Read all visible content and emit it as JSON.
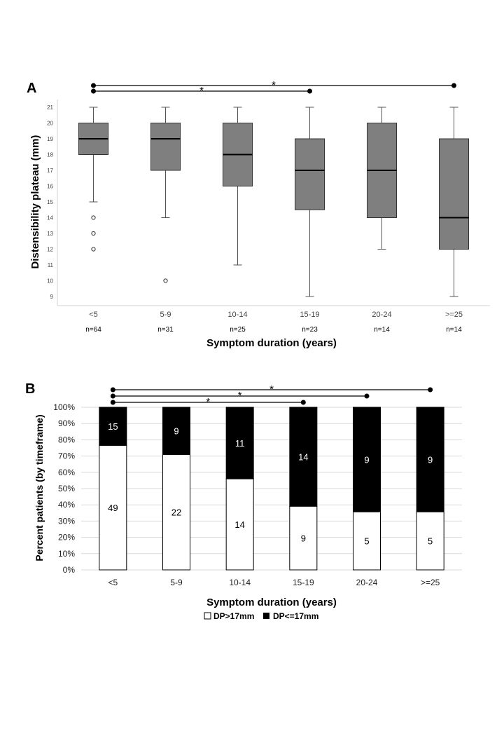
{
  "chart_data": [
    {
      "type": "box",
      "panel_label": "A",
      "categories": [
        "<5",
        "5-9",
        "10-14",
        "15-19",
        "20-24",
        ">=25"
      ],
      "counts": [
        "n=64",
        "n=31",
        "n=25",
        "n=23",
        "n=14",
        "n=14"
      ],
      "boxes": [
        {
          "min": 15,
          "q1": 18,
          "median": 19,
          "q3": 20,
          "max": 21,
          "outliers": [
            14,
            13,
            12
          ]
        },
        {
          "min": 14,
          "q1": 17,
          "median": 19,
          "q3": 20,
          "max": 21,
          "outliers": [
            10
          ]
        },
        {
          "min": 11,
          "q1": 16,
          "median": 18,
          "q3": 20,
          "max": 21,
          "outliers": []
        },
        {
          "min": 9,
          "q1": 14.5,
          "median": 17,
          "q3": 19,
          "max": 21,
          "outliers": []
        },
        {
          "min": 12,
          "q1": 14,
          "median": 17,
          "q3": 20,
          "max": 21,
          "outliers": []
        },
        {
          "min": 9,
          "q1": 12,
          "median": 14,
          "q3": 19,
          "max": 21,
          "outliers": []
        }
      ],
      "ylabel": "Distensibility plateau (mm)",
      "xlabel": "Symptom duration (years)",
      "ylim": [
        9,
        21
      ],
      "yticks": [
        9,
        10,
        11,
        12,
        13,
        14,
        15,
        16,
        17,
        18,
        19,
        20,
        21
      ],
      "box_color": "#7f7f7f",
      "significance": [
        {
          "from": "<5",
          "to": ">=25",
          "label": "*"
        },
        {
          "from": "<5",
          "to": "15-19",
          "label": "*"
        }
      ]
    },
    {
      "type": "stacked_bar",
      "panel_label": "B",
      "categories": [
        "<5",
        "5-9",
        "10-14",
        "15-19",
        "20-24",
        ">=25"
      ],
      "series": [
        {
          "name": "DP>17mm",
          "color": "#ffffff",
          "values": [
            49,
            22,
            14,
            9,
            5,
            5
          ]
        },
        {
          "name": "DP<=17mm",
          "color": "#000000",
          "values": [
            15,
            9,
            11,
            14,
            9,
            9
          ]
        }
      ],
      "ylabel": "Percent patients (by timeframe)",
      "xlabel": "Symptom duration (years)",
      "ylim": [
        0,
        100
      ],
      "yticks": [
        "0%",
        "10%",
        "20%",
        "30%",
        "40%",
        "50%",
        "60%",
        "70%",
        "80%",
        "90%",
        "100%"
      ],
      "significance": [
        {
          "from": "<5",
          "to": ">=25",
          "label": "*"
        },
        {
          "from": "<5",
          "to": "20-24",
          "label": "*"
        },
        {
          "from": "<5",
          "to": "15-19",
          "label": "*"
        }
      ],
      "legend_position": "bottom"
    }
  ]
}
